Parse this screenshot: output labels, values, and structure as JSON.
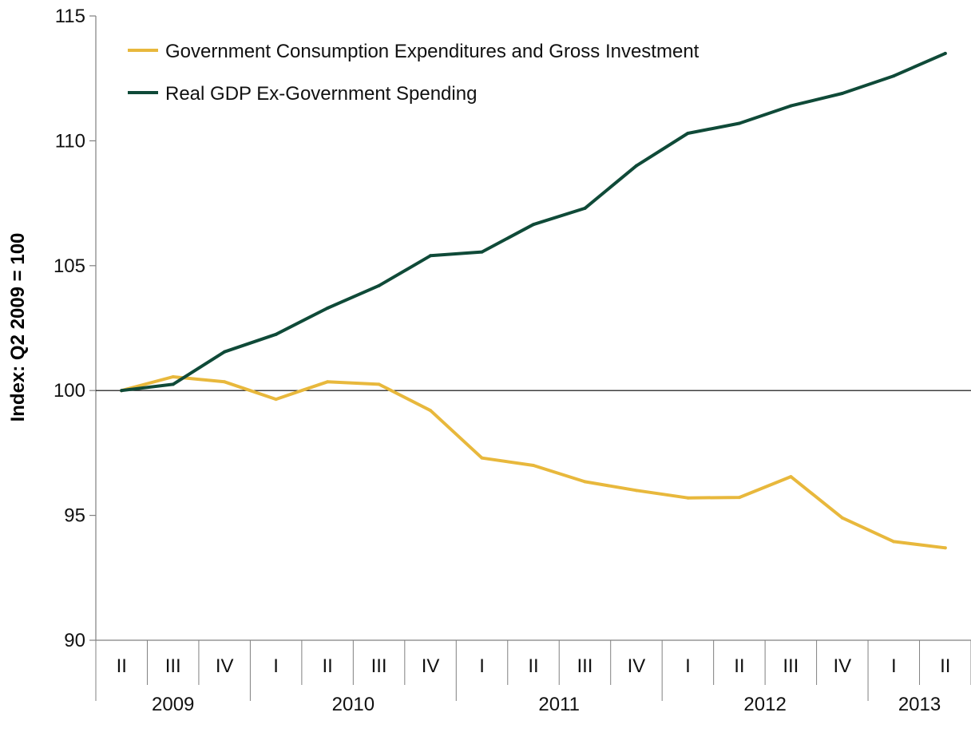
{
  "chart_data": {
    "type": "line",
    "title": "",
    "xlabel": "",
    "ylabel": "Index:  Q2 2009 = 100",
    "ylim": [
      90,
      115
    ],
    "yticks": [
      90,
      95,
      100,
      105,
      110,
      115
    ],
    "reference_line": 100,
    "grid": false,
    "legend_position": "top-left",
    "quarters": [
      "II",
      "III",
      "IV",
      "I",
      "II",
      "III",
      "IV",
      "I",
      "II",
      "III",
      "IV",
      "I",
      "II",
      "III",
      "IV",
      "I",
      "II"
    ],
    "years": [
      {
        "label": "2009",
        "start": 0,
        "end": 2
      },
      {
        "label": "2010",
        "start": 3,
        "end": 6
      },
      {
        "label": "2011",
        "start": 7,
        "end": 10
      },
      {
        "label": "2012",
        "start": 11,
        "end": 14
      },
      {
        "label": "2013",
        "start": 15,
        "end": 16
      }
    ],
    "series": [
      {
        "name": "Government Consumption Expenditures and Gross Investment",
        "color": "#e8b83c",
        "values": [
          100.0,
          100.55,
          100.35,
          99.65,
          100.35,
          100.25,
          99.2,
          97.3,
          97.0,
          96.35,
          96.0,
          95.7,
          95.72,
          96.55,
          94.9,
          93.95,
          93.7
        ]
      },
      {
        "name": "Real GDP Ex-Government Spending",
        "color": "#0f4a38",
        "values": [
          100.0,
          100.25,
          101.55,
          102.25,
          103.3,
          104.2,
          105.4,
          105.55,
          106.65,
          107.3,
          109.0,
          110.3,
          110.7,
          111.4,
          111.9,
          112.6,
          113.5
        ]
      }
    ]
  }
}
